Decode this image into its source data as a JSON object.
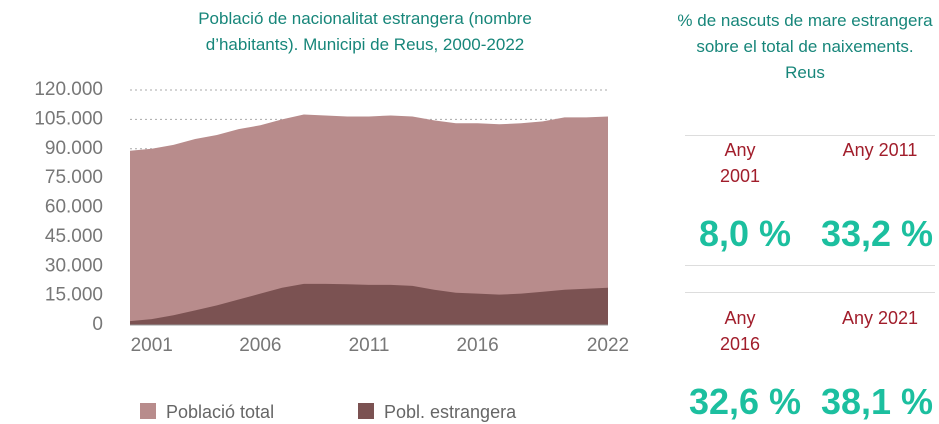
{
  "chart_data": {
    "type": "area",
    "title": "Població de nacionalitat estrangera (nombre d’habitants). Municipi de Reus, 2000-2022",
    "x": [
      2000,
      2001,
      2002,
      2003,
      2004,
      2005,
      2006,
      2007,
      2008,
      2009,
      2010,
      2011,
      2012,
      2013,
      2014,
      2015,
      2016,
      2017,
      2018,
      2019,
      2020,
      2021,
      2022
    ],
    "series": [
      {
        "name": "Població total",
        "color": "#b88c8c",
        "values": [
          89000,
          90000,
          92000,
          95000,
          97000,
          100000,
          102000,
          105000,
          107500,
          107000,
          106500,
          106500,
          107000,
          106500,
          104500,
          103000,
          103000,
          102500,
          103000,
          104000,
          106000,
          106000,
          106500
        ]
      },
      {
        "name": "Pobl. estrangera",
        "color": "#7b5252",
        "values": [
          2000,
          3000,
          5000,
          7500,
          10000,
          13000,
          16000,
          19000,
          21000,
          21000,
          20800,
          20500,
          20500,
          20000,
          18000,
          16500,
          16000,
          15500,
          16000,
          17000,
          18000,
          18500,
          19000
        ]
      }
    ],
    "xlim": [
      2000,
      2022
    ],
    "xticks": [
      2001,
      2006,
      2011,
      2016,
      2022
    ],
    "ylim": [
      0,
      120000
    ],
    "yticks": [
      0,
      {
        "value": 15000,
        "label": "15.000"
      },
      {
        "value": 30000,
        "label": "30.000"
      },
      {
        "value": 45000,
        "label": "45.000"
      },
      {
        "value": 60000,
        "label": "60.000"
      },
      {
        "value": 75000,
        "label": "75.000"
      },
      {
        "value": 90000,
        "label": "90.000"
      },
      {
        "value": 105000,
        "label": "105.000"
      },
      {
        "value": 120000,
        "label": "120.000"
      }
    ],
    "grid": true
  },
  "panel": {
    "title": "% de nascuts de mare estrangera sobre el total de naixements. Reus",
    "items": [
      {
        "label": "Any 2001",
        "value": "8,0 %"
      },
      {
        "label": "Any 2011",
        "value": "33,2 %"
      },
      {
        "label": "Any 2016",
        "value": "32,6 %"
      },
      {
        "label": "Any 2021",
        "value": "38,1 %"
      }
    ]
  }
}
